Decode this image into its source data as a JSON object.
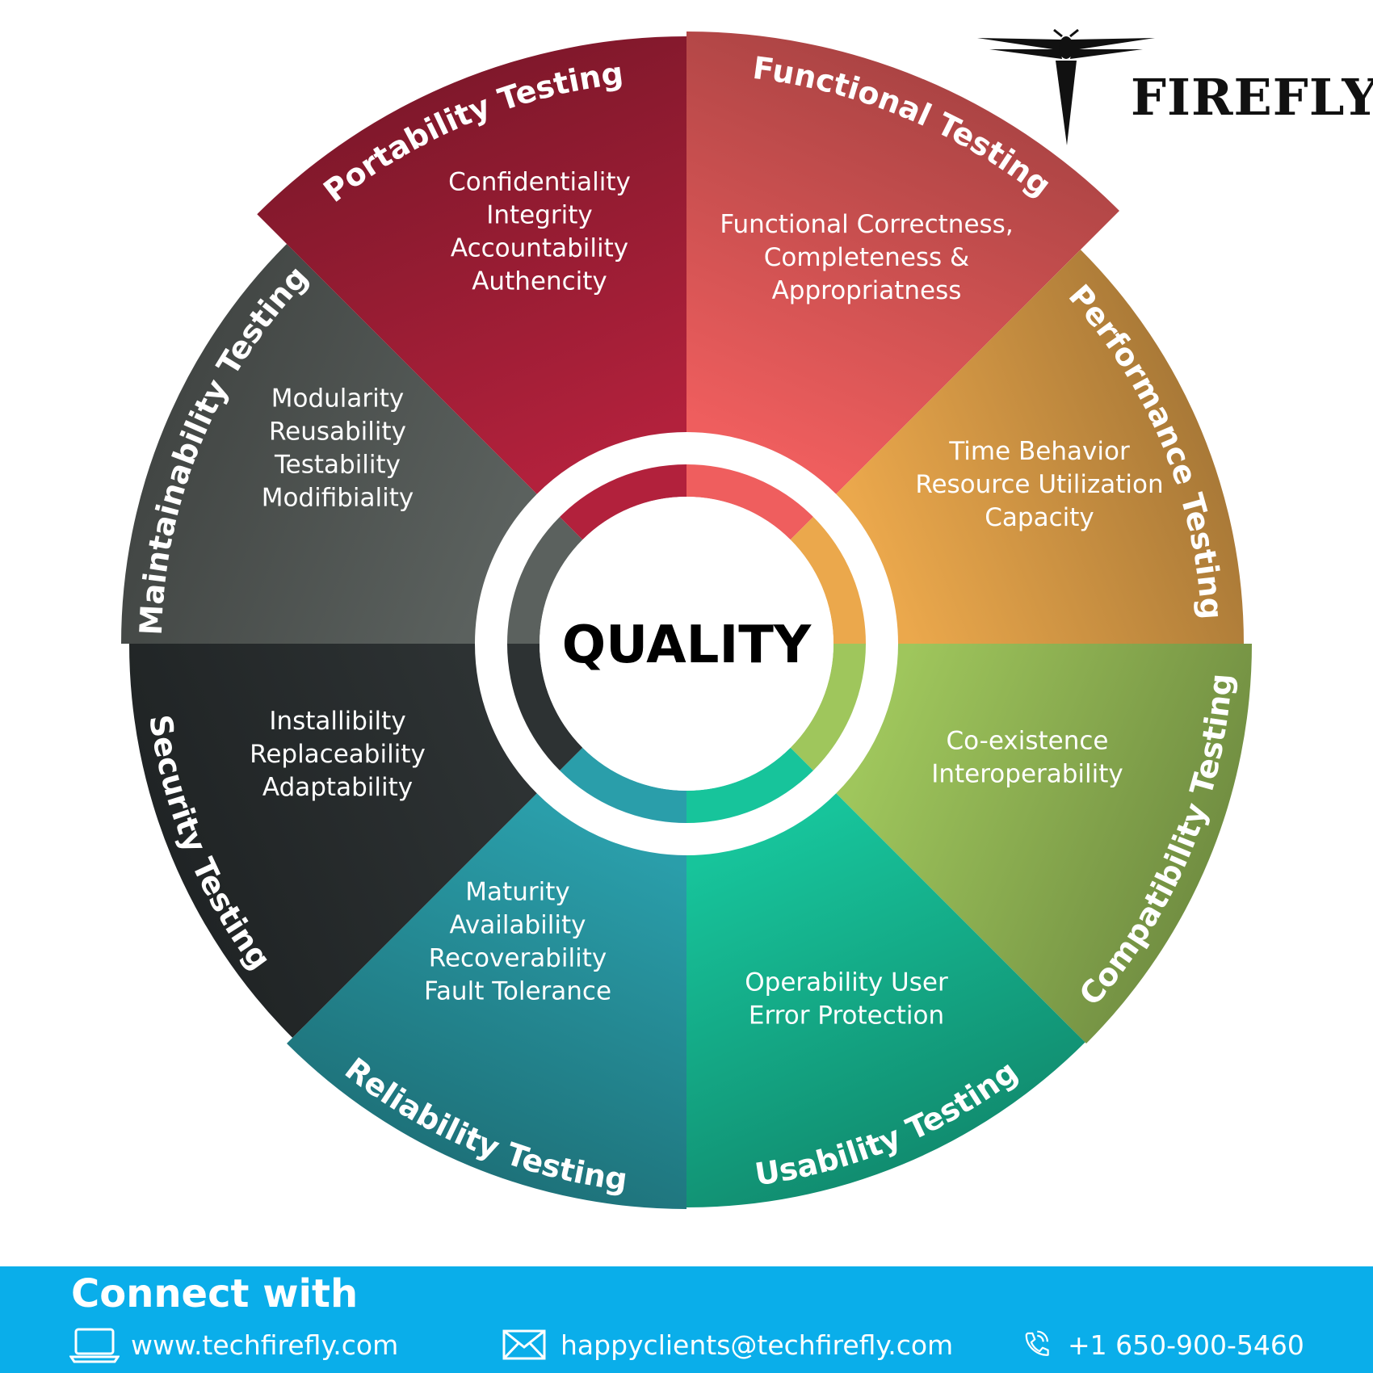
{
  "brand": {
    "logo_icon": "firefly-mark-icon",
    "name": "FIREFLY"
  },
  "center": {
    "label": "QUALITY"
  },
  "colors": {
    "functional": "#ef5e5e",
    "performance": "#eba84c",
    "compatibility": "#9fc65c",
    "usability": "#17c49b",
    "reliability": "#2a9eaa",
    "security": "#2d3233",
    "maintainability": "#5b615e",
    "portability": "#b2213c",
    "footer": "#0aaeea"
  },
  "segments": [
    {
      "key": "functional",
      "title": "Functional Testing",
      "items": [
        "Functional Correctness,",
        "Completeness &",
        "Appropriatness"
      ]
    },
    {
      "key": "performance",
      "title": "Performance Testing",
      "items": [
        "Time Behavior",
        "Resource Utilization",
        "Capacity"
      ]
    },
    {
      "key": "compatibility",
      "title": "Compatibility Testing",
      "items": [
        "Co-existence",
        "Interoperability"
      ]
    },
    {
      "key": "usability",
      "title": "Usability Testing",
      "items": [
        "Operability User",
        "Error Protection"
      ]
    },
    {
      "key": "reliability",
      "title": "Reliability Testing",
      "items": [
        "Maturity",
        "Availability",
        "Recoverability",
        "Fault Tolerance"
      ]
    },
    {
      "key": "security",
      "title": "Security Testing",
      "items": [
        "Installibilty",
        "Replaceability",
        "Adaptability"
      ]
    },
    {
      "key": "maintainability",
      "title": "Maintainability Testing",
      "items": [
        "Modularity",
        "Reusability",
        "Testability",
        "Modifibiality"
      ]
    },
    {
      "key": "portability",
      "title": "Portability Testing",
      "items": [
        "Confidentiality",
        "Integrity",
        "Accountability",
        "Authencity"
      ]
    }
  ],
  "footer": {
    "title": "Connect with",
    "website": {
      "icon": "laptop-icon",
      "text": "www.techfirefly.com"
    },
    "email": {
      "icon": "envelope-icon",
      "text": "happyclients@techfirefly.com"
    },
    "phone": {
      "icon": "phone-icon",
      "text": "+1 650-900-5460"
    }
  }
}
